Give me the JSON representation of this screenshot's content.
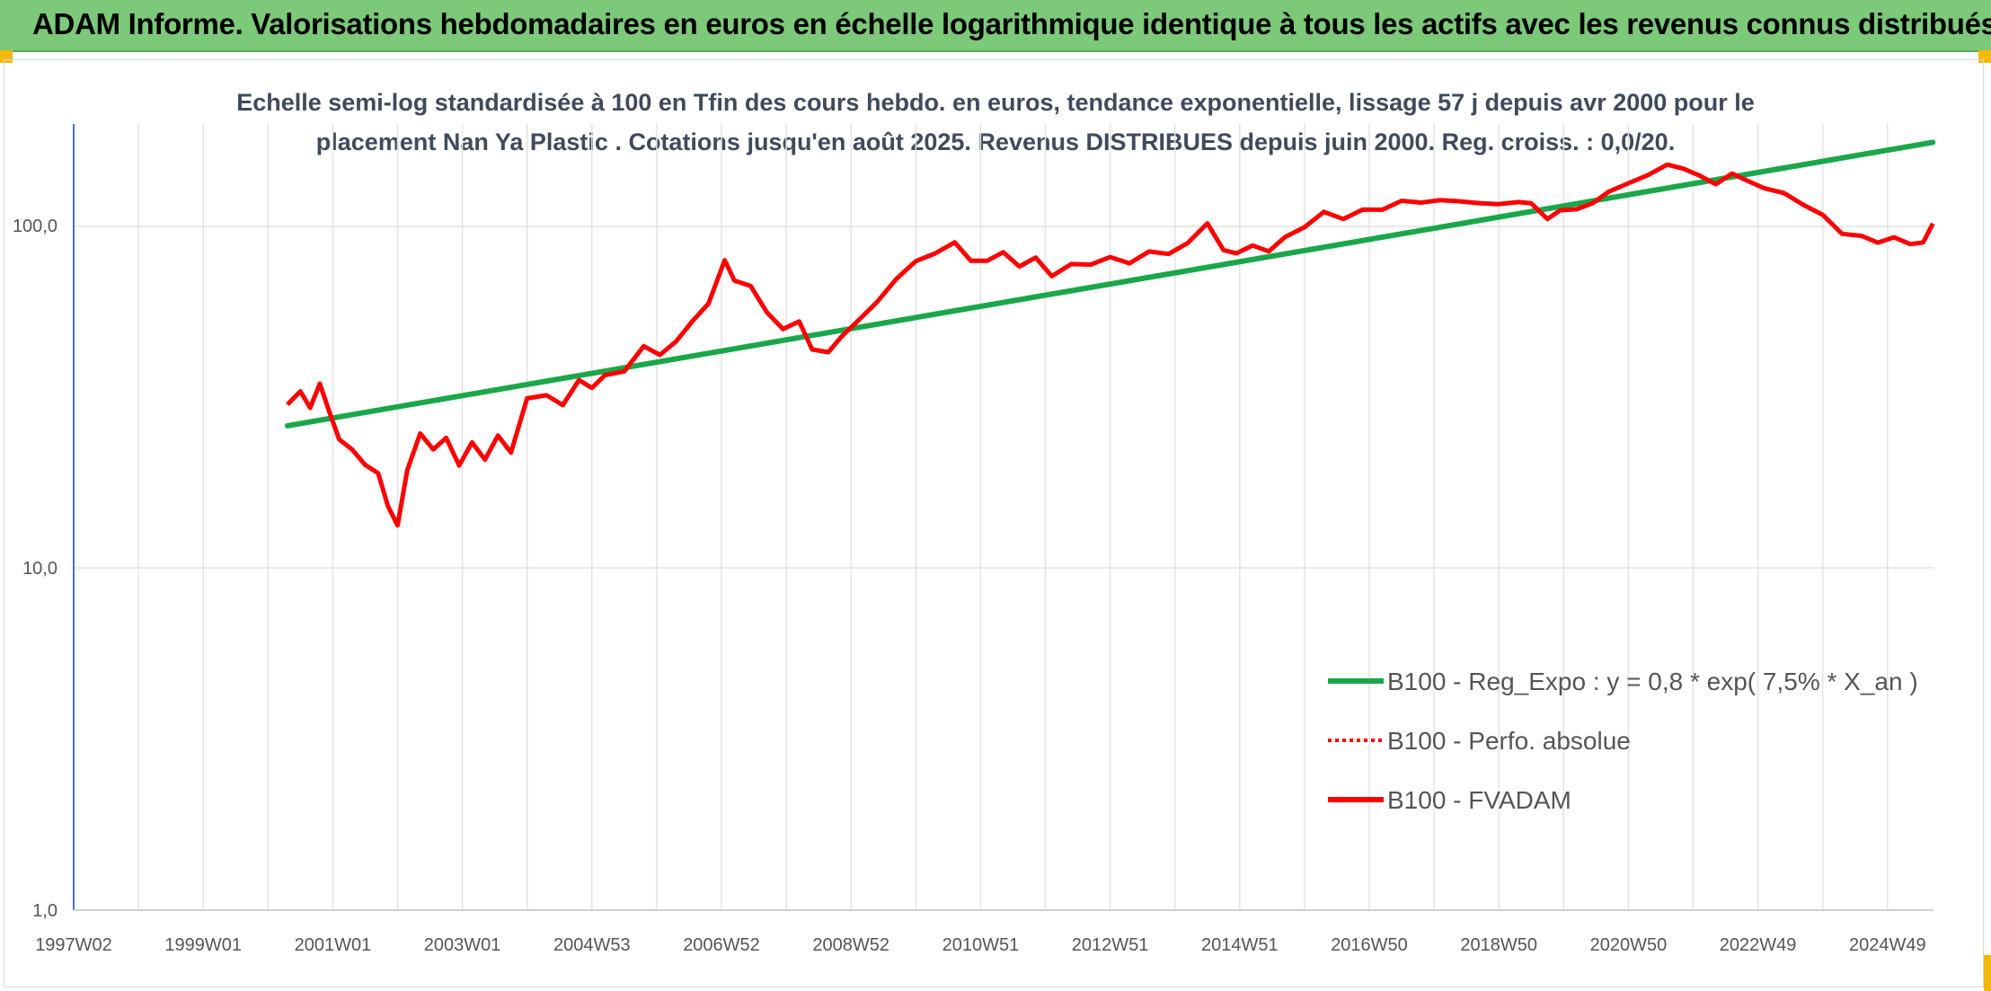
{
  "header": {
    "title": "ADAM Informe. Valorisations hebdomadaires en euros en échelle logarithmique identique à tous les actifs avec les revenus connus distribués"
  },
  "chart_data": {
    "type": "line",
    "title_line1": "Echelle semi-log standardisée à 100 en Tfin des cours hebdo. en euros, tendance exponentielle, lissage 57 j depuis avr 2000 pour le",
    "title_line2": "placement Nan Ya Plastic . Cotations jusqu'en août 2025. Revenus DISTRIBUES depuis juin 2000. Reg. croiss. : 0,0/20.",
    "y_scale": "log",
    "ylim": [
      1,
      200
    ],
    "y_ticks": [
      "1,0",
      "10,0",
      "100,0"
    ],
    "x_range": [
      1997.0,
      2025.7
    ],
    "x_ticks": [
      "1997W02",
      "1999W01",
      "2001W01",
      "2003W01",
      "2004W53",
      "2006W52",
      "2008W52",
      "2010W51",
      "2012W51",
      "2014W51",
      "2016W50",
      "2018W50",
      "2020W50",
      "2022W49",
      "2024W49"
    ],
    "grid": "vertical",
    "legend_position": "right",
    "legend": [
      "B100 - Reg_Expo : y = 0,8 * exp( 7,5% *  X_an )",
      "B100 - Perfo. absolue",
      "B100 - FVADAM"
    ],
    "colors": {
      "regression": "#1aa74a",
      "perfo": "#ff0000",
      "fvadam": "#ff0000"
    },
    "series": [
      {
        "name": "B100 - Reg_Expo : y = 0,8 * exp( 7,5% *  X_an )",
        "style": "solid",
        "x": [
          2000.3,
          2025.7
        ],
        "y": [
          26,
          175
        ]
      },
      {
        "name": "B100 - FVADAM",
        "style": "solid",
        "x": [
          2000.3,
          2000.5,
          2000.65,
          2000.8,
          2000.95,
          2001.1,
          2001.3,
          2001.5,
          2001.7,
          2001.85,
          2002.0,
          2002.15,
          2002.35,
          2002.55,
          2002.75,
          2002.95,
          2003.15,
          2003.35,
          2003.55,
          2003.75,
          2004.0,
          2004.3,
          2004.55,
          2004.8,
          2005.0,
          2005.2,
          2005.5,
          2005.8,
          2006.05,
          2006.3,
          2006.55,
          2006.8,
          2007.05,
          2007.2,
          2007.45,
          2007.7,
          2007.95,
          2008.2,
          2008.4,
          2008.65,
          2008.85,
          2009.1,
          2009.4,
          2009.7,
          2010.0,
          2010.3,
          2010.6,
          2010.85,
          2011.1,
          2011.35,
          2011.6,
          2011.85,
          2012.1,
          2012.4,
          2012.7,
          2013.0,
          2013.3,
          2013.6,
          2013.9,
          2014.2,
          2014.5,
          2014.75,
          2014.95,
          2015.2,
          2015.45,
          2015.7,
          2016.0,
          2016.3,
          2016.6,
          2016.9,
          2017.2,
          2017.5,
          2017.8,
          2018.1,
          2018.4,
          2018.7,
          2019.0,
          2019.3,
          2019.5,
          2019.75,
          2019.95,
          2020.2,
          2020.45,
          2020.7,
          2021.0,
          2021.3,
          2021.6,
          2021.85,
          2022.1,
          2022.35,
          2022.6,
          2022.85,
          2023.1,
          2023.4,
          2023.7,
          2024.0,
          2024.3,
          2024.6,
          2024.85,
          2025.1,
          2025.35,
          2025.55,
          2025.7
        ],
        "y": [
          30,
          33,
          29,
          35,
          28,
          24,
          22,
          20,
          19,
          15,
          13.5,
          19,
          25,
          22,
          24,
          20,
          23,
          21,
          24,
          22,
          31,
          32,
          30,
          35,
          34,
          36,
          38,
          44,
          42,
          46,
          52,
          60,
          78,
          70,
          66,
          56,
          50,
          52,
          44,
          42,
          48,
          52,
          60,
          70,
          78,
          84,
          88,
          80,
          78,
          84,
          76,
          80,
          72,
          76,
          78,
          80,
          78,
          84,
          82,
          90,
          100,
          86,
          82,
          88,
          84,
          92,
          100,
          108,
          106,
          110,
          112,
          118,
          116,
          120,
          116,
          118,
          114,
          118,
          116,
          104,
          112,
          110,
          118,
          124,
          134,
          140,
          150,
          148,
          138,
          134,
          140,
          136,
          128,
          124,
          116,
          106,
          96,
          92,
          90,
          92,
          88,
          90,
          100
        ]
      }
    ]
  }
}
